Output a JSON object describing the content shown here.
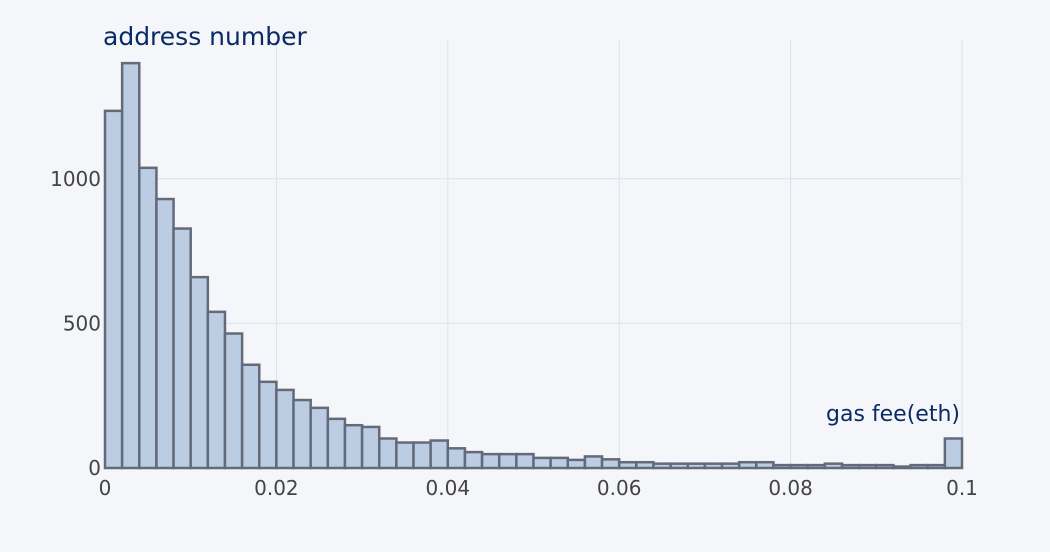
{
  "chart_data": {
    "type": "bar",
    "subtype": "histogram",
    "ylabel": "address number",
    "xlabel": "gas fee(eth)",
    "xlim": [
      0,
      0.1
    ],
    "ylim": [
      0,
      1480
    ],
    "bin_width": 0.002,
    "x_ticks": [
      0,
      0.02,
      0.04,
      0.06,
      0.08,
      0.1
    ],
    "x_tick_labels": [
      "0",
      "0.02",
      "0.04",
      "0.06",
      "0.08",
      "0.1"
    ],
    "y_ticks": [
      0,
      500,
      1000
    ],
    "y_tick_labels": [
      "0",
      "500",
      "1000"
    ],
    "grid": true,
    "bin_starts": [
      0,
      0.002,
      0.004,
      0.006,
      0.008,
      0.01,
      0.012,
      0.014,
      0.016,
      0.018,
      0.02,
      0.022,
      0.024,
      0.026,
      0.028,
      0.03,
      0.032,
      0.034,
      0.036,
      0.038,
      0.04,
      0.042,
      0.044,
      0.046,
      0.048,
      0.05,
      0.052,
      0.054,
      0.056,
      0.058,
      0.06,
      0.062,
      0.064,
      0.066,
      0.068,
      0.07,
      0.072,
      0.074,
      0.076,
      0.078,
      0.08,
      0.082,
      0.084,
      0.086,
      0.088,
      0.09,
      0.092,
      0.094,
      0.096,
      0.098
    ],
    "values": [
      1235,
      1400,
      1038,
      930,
      828,
      660,
      540,
      465,
      357,
      298,
      270,
      235,
      208,
      170,
      148,
      142,
      102,
      88,
      88,
      95,
      68,
      55,
      48,
      48,
      48,
      35,
      35,
      28,
      40,
      30,
      20,
      20,
      15,
      15,
      15,
      15,
      15,
      20,
      20,
      10,
      10,
      10,
      15,
      10,
      10,
      10,
      5,
      10,
      10,
      102
    ]
  },
  "colors": {
    "bar_fill": "#bccce3",
    "bar_stroke": "#636b7a",
    "grid": "#dde1ea",
    "background": "#f4f6fa"
  }
}
